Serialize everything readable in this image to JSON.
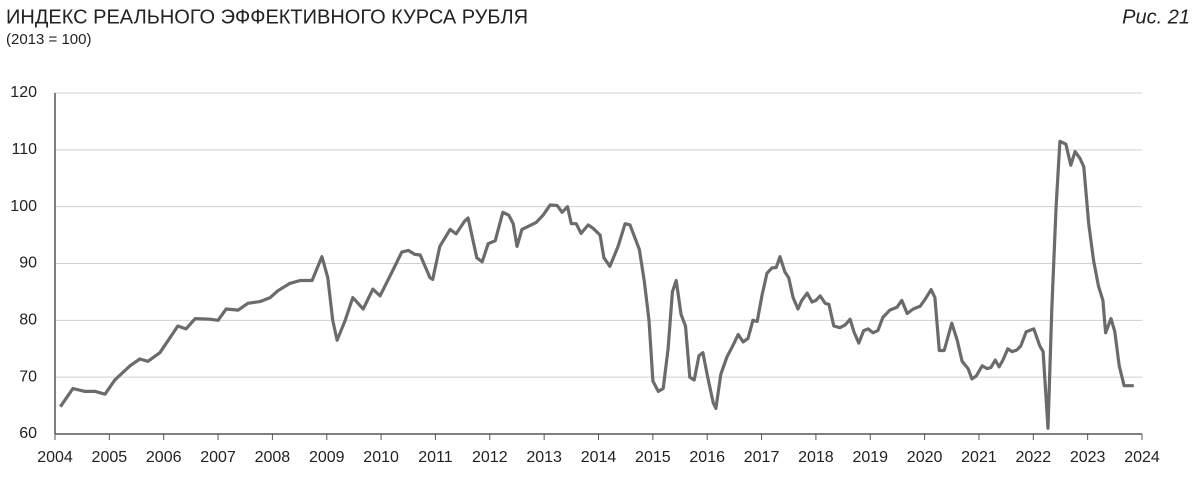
{
  "chart_data": {
    "type": "line",
    "title": "ИНДЕКС РЕАЛЬНОГО ЭФФЕКТИВНОГО КУРСА РУБЛЯ",
    "subtitle": "(2013 = 100)",
    "figure_label": "Рис. 21",
    "x": [
      2004.1,
      2004.33,
      2004.55,
      2004.74,
      2004.92,
      2005.1,
      2005.38,
      2005.56,
      2005.71,
      2005.93,
      2006.12,
      2006.26,
      2006.41,
      2006.58,
      2006.85,
      2007.0,
      2007.15,
      2007.37,
      2007.55,
      2007.77,
      2007.96,
      2008.1,
      2008.32,
      2008.51,
      2008.73,
      2008.91,
      2009.02,
      2009.11,
      2009.19,
      2009.34,
      2009.48,
      2009.67,
      2009.85,
      2009.98,
      2010.2,
      2010.38,
      2010.5,
      2010.62,
      2010.72,
      2010.9,
      2010.95,
      2011.08,
      2011.27,
      2011.38,
      2011.54,
      2011.6,
      2011.76,
      2011.86,
      2011.97,
      2012.1,
      2012.24,
      2012.35,
      2012.43,
      2012.5,
      2012.59,
      2012.7,
      2012.85,
      2012.98,
      2013.11,
      2013.24,
      2013.33,
      2013.43,
      2013.5,
      2013.59,
      2013.68,
      2013.81,
      2013.9,
      2014.03,
      2014.1,
      2014.21,
      2014.36,
      2014.49,
      2014.58,
      2014.75,
      2014.84,
      2014.93,
      2015.0,
      2015.1,
      2015.19,
      2015.28,
      2015.36,
      2015.43,
      2015.52,
      2015.6,
      2015.68,
      2015.76,
      2015.85,
      2015.92,
      2016.01,
      2016.11,
      2016.16,
      2016.25,
      2016.36,
      2016.47,
      2016.57,
      2016.66,
      2016.75,
      2016.84,
      2016.92,
      2017.01,
      2017.1,
      2017.19,
      2017.27,
      2017.34,
      2017.43,
      2017.5,
      2017.58,
      2017.67,
      2017.74,
      2017.84,
      2017.93,
      2018.0,
      2018.08,
      2018.17,
      2018.24,
      2018.33,
      2018.44,
      2018.54,
      2018.63,
      2018.7,
      2018.79,
      2018.88,
      2018.96,
      2019.05,
      2019.14,
      2019.23,
      2019.36,
      2019.49,
      2019.58,
      2019.68,
      2019.79,
      2019.92,
      2020.03,
      2020.12,
      2020.19,
      2020.27,
      2020.36,
      2020.5,
      2020.6,
      2020.69,
      2020.8,
      2020.87,
      2020.95,
      2021.06,
      2021.15,
      2021.22,
      2021.3,
      2021.37,
      2021.44,
      2021.53,
      2021.61,
      2021.7,
      2021.77,
      2021.87,
      2022.01,
      2022.12,
      2022.18,
      2022.27,
      2022.34,
      2022.42,
      2022.49,
      2022.6,
      2022.69,
      2022.77,
      2022.86,
      2022.93,
      2023.02,
      2023.11,
      2023.2,
      2023.28,
      2023.33,
      2023.43,
      2023.5,
      2023.58,
      2023.67,
      2023.85
    ],
    "values": [
      64.8,
      68,
      67.5,
      67.5,
      67,
      69.5,
      72,
      73.2,
      72.8,
      74.3,
      77,
      79,
      78.5,
      80.3,
      80.2,
      80,
      82,
      81.8,
      83,
      83.3,
      84,
      85.2,
      86.5,
      87,
      87,
      91.2,
      87.5,
      80,
      76.5,
      80,
      84,
      82,
      85.5,
      84.3,
      88.5,
      92,
      92.3,
      91.6,
      91.5,
      87.5,
      87.2,
      93,
      96,
      95.2,
      97.5,
      98,
      91,
      90.3,
      93.5,
      94,
      99,
      98.5,
      97,
      93,
      96,
      96.5,
      97.2,
      98.5,
      100.3,
      100.2,
      99,
      100,
      97,
      97,
      95.3,
      96.8,
      96.2,
      95,
      91,
      89.5,
      93,
      97,
      96.8,
      92.5,
      87,
      80,
      69.3,
      67.5,
      68,
      75,
      85,
      87,
      81,
      79,
      70,
      69.5,
      73.8,
      74.3,
      70,
      65.5,
      64.5,
      70.5,
      73.5,
      75.5,
      77.5,
      76.2,
      76.8,
      80,
      79.8,
      84.5,
      88.3,
      89.2,
      89.3,
      91.2,
      88.5,
      87.5,
      84,
      82,
      83.5,
      84.8,
      83.2,
      83.5,
      84.3,
      83,
      82.8,
      79,
      78.7,
      79.2,
      80.2,
      78,
      76,
      78.2,
      78.5,
      77.8,
      78.2,
      80.5,
      81.8,
      82.3,
      83.5,
      81.2,
      82,
      82.5,
      84,
      85.4,
      84,
      74.7,
      74.7,
      79.5,
      76.5,
      72.8,
      71.5,
      69.7,
      70.2,
      72,
      71.5,
      71.7,
      73,
      71.8,
      73,
      75,
      74.5,
      74.8,
      75.5,
      78,
      78.5,
      75.5,
      74.5,
      61,
      82,
      100,
      111.5,
      111,
      107.3,
      109.7,
      108.5,
      107,
      97,
      90.5,
      86,
      83.5,
      77.8,
      80.3,
      78,
      72,
      68.5,
      68.5
    ],
    "color": "#6b6b6b",
    "xlim": [
      2004,
      2024
    ],
    "xticks": [
      2004,
      2005,
      2006,
      2007,
      2008,
      2009,
      2010,
      2011,
      2012,
      2013,
      2014,
      2015,
      2016,
      2017,
      2018,
      2019,
      2020,
      2021,
      2022,
      2023,
      2024
    ],
    "ylim": [
      60,
      120
    ],
    "yticks": [
      60,
      70,
      80,
      90,
      100,
      110,
      120
    ],
    "grid": true
  }
}
